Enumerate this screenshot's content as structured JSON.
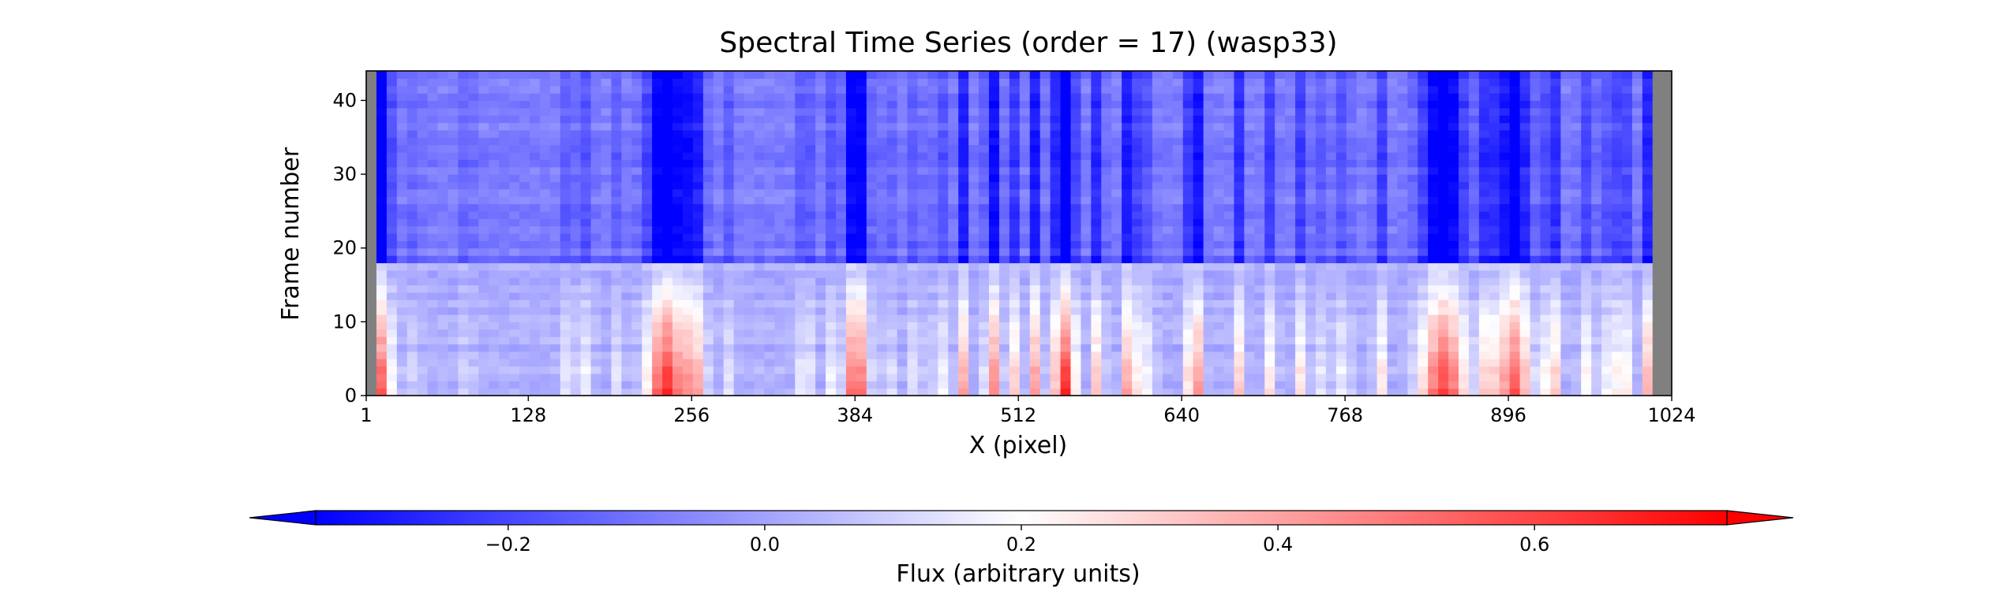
{
  "chart_data": {
    "type": "heatmap",
    "title": "Spectral Time Series (order = 17) (wasp33)",
    "xlabel": "X (pixel)",
    "ylabel": "Frame number",
    "xlim": [
      1,
      1024
    ],
    "ylim": [
      0,
      44
    ],
    "xticks": [
      1,
      128,
      256,
      384,
      512,
      640,
      768,
      896,
      1024
    ],
    "yticks": [
      0,
      10,
      20,
      30,
      40
    ],
    "n_frames": 44,
    "masked_columns": [
      [
        1,
        12
      ],
      [
        1011,
        1024
      ]
    ],
    "masked_color": "#808080",
    "colormap": "bwr",
    "colormap_stops": [
      "#0000ff",
      "#ffffff",
      "#ff0000"
    ],
    "value_range": [
      -0.35,
      0.75
    ],
    "baseline_flux": {
      "frames_0_17": 0.02,
      "frames_18_44": -0.08
    },
    "dark_frame": {
      "frame": 18,
      "value": -0.16
    },
    "spectral_features": [
      {
        "x": 12,
        "width": 6,
        "amplitude": 0.55
      },
      {
        "x": 38,
        "width": 5,
        "amplitude": 0.08
      },
      {
        "x": 80,
        "width": 4,
        "amplitude": 0.1
      },
      {
        "x": 160,
        "width": 4,
        "amplitude": 0.15
      },
      {
        "x": 175,
        "width": 3,
        "amplitude": 0.18
      },
      {
        "x": 198,
        "width": 3,
        "amplitude": 0.12
      },
      {
        "x": 236,
        "width": 10,
        "amplitude": 0.65
      },
      {
        "x": 258,
        "width": 6,
        "amplitude": 0.4
      },
      {
        "x": 285,
        "width": 3,
        "amplitude": 0.12
      },
      {
        "x": 345,
        "width": 3,
        "amplitude": 0.3
      },
      {
        "x": 365,
        "width": 3,
        "amplitude": 0.15
      },
      {
        "x": 385,
        "width": 6,
        "amplitude": 0.6
      },
      {
        "x": 410,
        "width": 3,
        "amplitude": 0.15
      },
      {
        "x": 432,
        "width": 3,
        "amplitude": 0.18
      },
      {
        "x": 450,
        "width": 3,
        "amplitude": 0.25
      },
      {
        "x": 468,
        "width": 3,
        "amplitude": 0.4
      },
      {
        "x": 492,
        "width": 4,
        "amplitude": 0.45
      },
      {
        "x": 508,
        "width": 3,
        "amplitude": 0.3
      },
      {
        "x": 525,
        "width": 3,
        "amplitude": 0.4
      },
      {
        "x": 548,
        "width": 6,
        "amplitude": 0.65
      },
      {
        "x": 575,
        "width": 3,
        "amplitude": 0.4
      },
      {
        "x": 600,
        "width": 4,
        "amplitude": 0.5
      },
      {
        "x": 615,
        "width": 3,
        "amplitude": 0.2
      },
      {
        "x": 650,
        "width": 4,
        "amplitude": 0.55
      },
      {
        "x": 685,
        "width": 3,
        "amplitude": 0.3
      },
      {
        "x": 710,
        "width": 3,
        "amplitude": 0.25
      },
      {
        "x": 735,
        "width": 3,
        "amplitude": 0.3
      },
      {
        "x": 752,
        "width": 3,
        "amplitude": 0.2
      },
      {
        "x": 768,
        "width": 3,
        "amplitude": 0.25
      },
      {
        "x": 795,
        "width": 3,
        "amplitude": 0.3
      },
      {
        "x": 845,
        "width": 12,
        "amplitude": 0.6
      },
      {
        "x": 880,
        "width": 4,
        "amplitude": 0.35
      },
      {
        "x": 900,
        "width": 9,
        "amplitude": 0.55
      },
      {
        "x": 930,
        "width": 4,
        "amplitude": 0.4
      },
      {
        "x": 955,
        "width": 3,
        "amplitude": 0.25
      },
      {
        "x": 970,
        "width": 3,
        "amplitude": 0.25
      },
      {
        "x": 985,
        "width": 3,
        "amplitude": 0.5
      },
      {
        "x": 1005,
        "width": 3,
        "amplitude": 0.35
      }
    ],
    "colorbar": {
      "label": "Flux (arbitrary units)",
      "range": [
        -0.35,
        0.75
      ],
      "ticks": [
        -0.2,
        0.0,
        0.2,
        0.4,
        0.6
      ],
      "tick_labels": [
        "−0.2",
        "0.0",
        "0.2",
        "0.4",
        "0.6"
      ],
      "extend": "both"
    },
    "grid": false
  }
}
